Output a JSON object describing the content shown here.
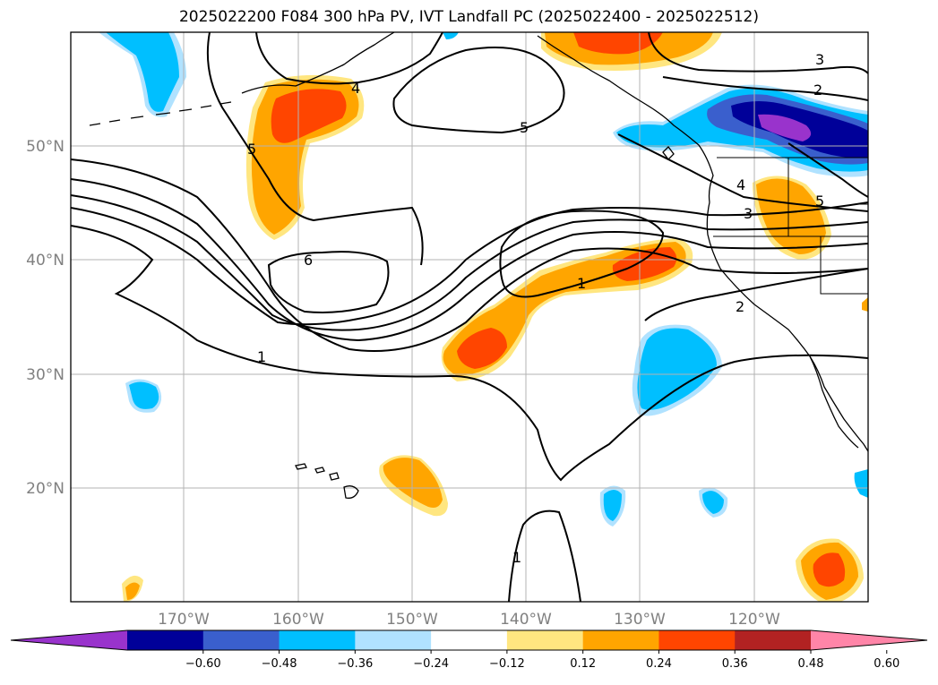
{
  "title": "2025022200 F084 300 hPa PV, IVT Landfall PC (2025022400 - 2025022512)",
  "lat_labels": [
    "50°N",
    "40°N",
    "30°N",
    "20°N"
  ],
  "lon_labels": [
    "170°W",
    "160°W",
    "150°W",
    "140°W",
    "130°W",
    "120°W"
  ],
  "contour_labels": [
    "1",
    "1",
    "1",
    "2",
    "2",
    "3",
    "3",
    "4",
    "4",
    "5",
    "5",
    "5",
    "6"
  ],
  "colorbar": {
    "ticks": [
      "−0.60",
      "−0.48",
      "−0.36",
      "−0.24",
      "−0.12",
      "0.12",
      "0.24",
      "0.36",
      "0.48",
      "0.60"
    ],
    "colors": [
      "#9933cc",
      "#000099",
      "#3a5fcd",
      "#00bfff",
      "#b0e2ff",
      "#ffffff",
      "#ffe680",
      "#ffa500",
      "#ff4500",
      "#b22222",
      "#ff85a8"
    ]
  },
  "map": {
    "lat_range": [
      10,
      60
    ],
    "lon_range": [
      -180,
      -110
    ],
    "gridlines": true,
    "colors": {
      "neg_extreme": "#9933cc",
      "neg_high": "#000099",
      "neg_mid": "#3a5fcd",
      "neg_low": "#00bfff",
      "neg_faint": "#b0e2ff",
      "pos_faint": "#ffe680",
      "pos_low": "#ffa500",
      "pos_mid": "#ff4500",
      "pos_high": "#b22222"
    }
  }
}
